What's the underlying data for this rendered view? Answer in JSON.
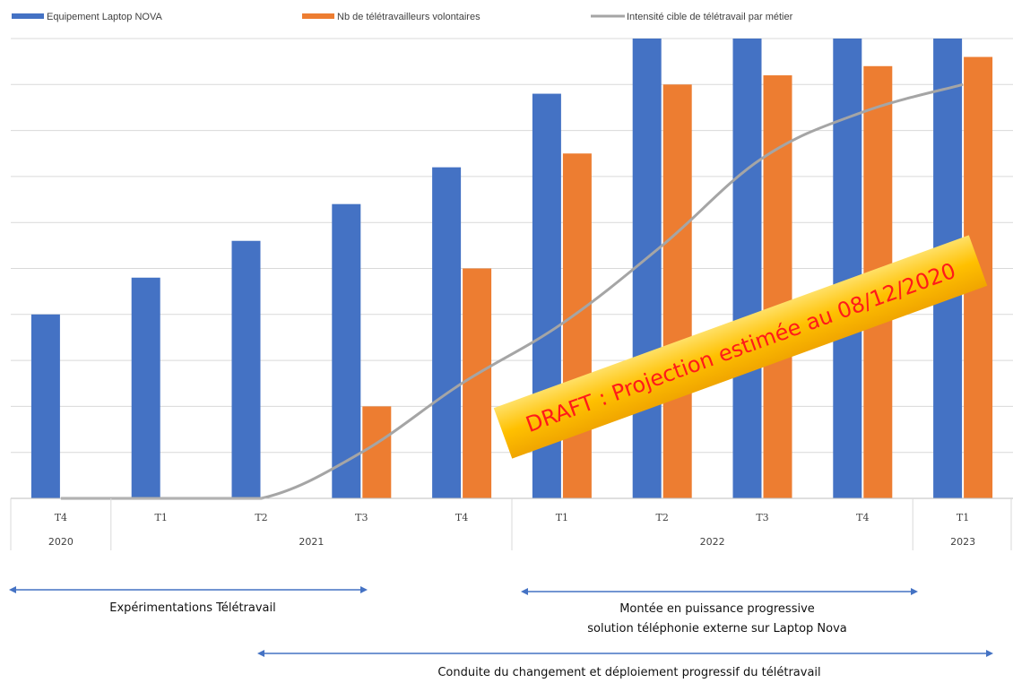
{
  "chart_data": {
    "type": "bar",
    "legend_position": "top",
    "grid": true,
    "ylim": [
      0,
      10
    ],
    "categories": [
      "T4",
      "T1",
      "T2",
      "T3",
      "T4",
      "T1",
      "T2",
      "T3",
      "T4",
      "T1"
    ],
    "years": [
      {
        "label": "2020",
        "count": 1
      },
      {
        "label": "2021",
        "count": 4
      },
      {
        "label": "2022",
        "count": 4
      },
      {
        "label": "2023",
        "count": 1
      }
    ],
    "series": [
      {
        "name": "Equipement Laptop NOVA",
        "type": "bar",
        "values": [
          4.0,
          4.8,
          5.6,
          6.4,
          7.2,
          8.8,
          10.0,
          10.0,
          10.0,
          10.0
        ]
      },
      {
        "name": "Nb de télétravailleurs volontaires",
        "type": "bar",
        "values": [
          0,
          0,
          0,
          2.0,
          5.0,
          7.5,
          9.0,
          9.2,
          9.4,
          9.6
        ]
      },
      {
        "name": "Intensité cible de télétravail par métier",
        "type": "line",
        "values": [
          0,
          0,
          0,
          1.0,
          2.5,
          3.8,
          5.5,
          7.4,
          8.4,
          9.0
        ]
      }
    ],
    "colors": {
      "bar1": "#4472C4",
      "bar2": "#ED7D31",
      "line": "#A5A5A5",
      "grid": "#D9D9D9"
    },
    "watermark": "DRAFT : Projection estimée au 08/12/2020"
  },
  "annotations": {
    "experimentations": "Expérimentations Télétravail",
    "montee_line1": "Montée en puissance progressive",
    "montee_line2": "solution téléphonie externe sur Laptop Nova",
    "conduite": "Conduite du changement et déploiement progressif du télétravail",
    "arrow_color": "#4472C4"
  }
}
